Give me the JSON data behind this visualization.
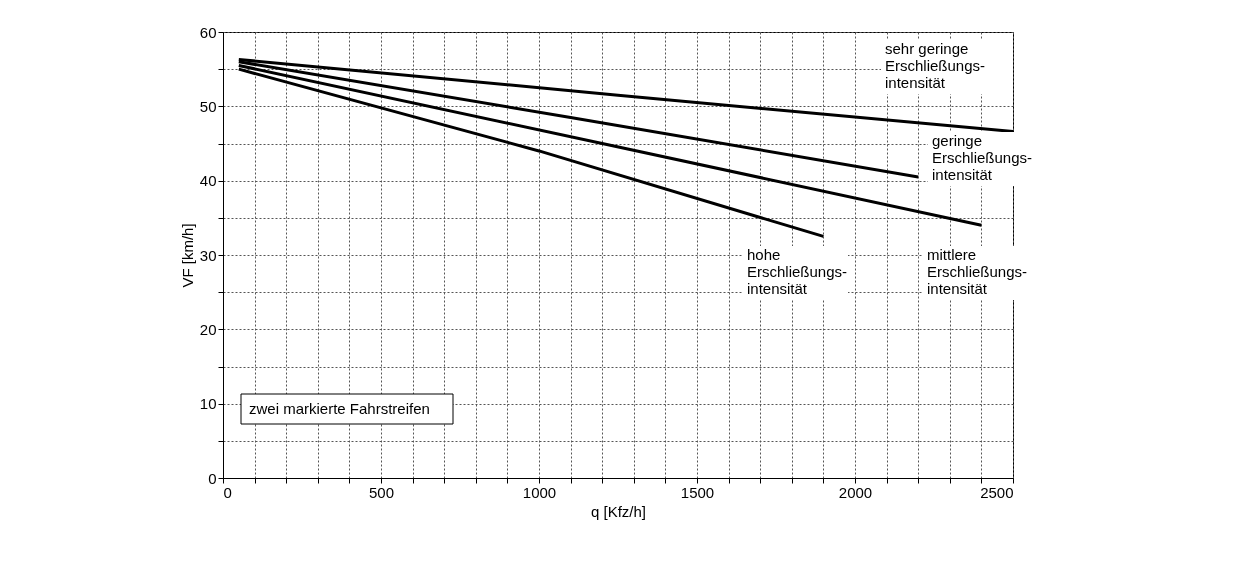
{
  "chart_data": {
    "type": "line",
    "xlabel": "q [Kfz/h]",
    "ylabel": "VF [km/h]",
    "xlim": [
      0,
      2500
    ],
    "ylim": [
      0,
      60
    ],
    "xticks": [
      0,
      {
        "value": 100,
        "label": null
      },
      {
        "value": 200,
        "label": null
      },
      {
        "value": 300,
        "label": null
      },
      {
        "value": 400,
        "label": null
      },
      500,
      {
        "value": 600,
        "label": null
      },
      {
        "value": 700,
        "label": null
      },
      {
        "value": 800,
        "label": null
      },
      {
        "value": 900,
        "label": null
      },
      1000,
      {
        "value": 1100,
        "label": null
      },
      {
        "value": 1200,
        "label": null
      },
      {
        "value": 1300,
        "label": null
      },
      {
        "value": 1400,
        "label": null
      },
      1500,
      {
        "value": 1600,
        "label": null
      },
      {
        "value": 1700,
        "label": null
      },
      {
        "value": 1800,
        "label": null
      },
      {
        "value": 1900,
        "label": null
      },
      2000,
      {
        "value": 2100,
        "label": null
      },
      {
        "value": 2200,
        "label": null
      },
      {
        "value": 2300,
        "label": null
      },
      {
        "value": 2400,
        "label": null
      },
      2500
    ],
    "yticks": [
      0,
      {
        "value": 5,
        "label": null
      },
      10,
      {
        "value": 15,
        "label": null
      },
      20,
      {
        "value": 25,
        "label": null
      },
      30,
      {
        "value": 35,
        "label": null
      },
      40,
      {
        "value": 45,
        "label": null
      },
      50,
      {
        "value": 55,
        "label": null
      },
      60
    ],
    "grid": true,
    "line_style": "solid",
    "marker": "none",
    "series": [
      {
        "color": "#000000",
        "x": [
          50,
          1250,
          2500
        ],
        "values": [
          56.3,
          51.5,
          46.6
        ]
      },
      {
        "color": "#000000",
        "x": [
          50,
          1100,
          2200
        ],
        "values": [
          56.0,
          48.5,
          40.5
        ]
      },
      {
        "color": "#000000",
        "x": [
          50,
          1200,
          2400
        ],
        "values": [
          55.5,
          45.0,
          34.0
        ]
      },
      {
        "color": "#000000",
        "x": [
          50,
          1000,
          1900
        ],
        "values": [
          55.0,
          44.0,
          32.5
        ]
      }
    ],
    "annotations": [
      "sehr geringe\nErschließungs-\nintensität",
      "geringe\nErschließungs-\nintensität",
      "mittlere\nErschließungs-\nintensität",
      "hohe\nErschließungs-\nintensität",
      "zwei markierte Fahrstreifen"
    ]
  }
}
